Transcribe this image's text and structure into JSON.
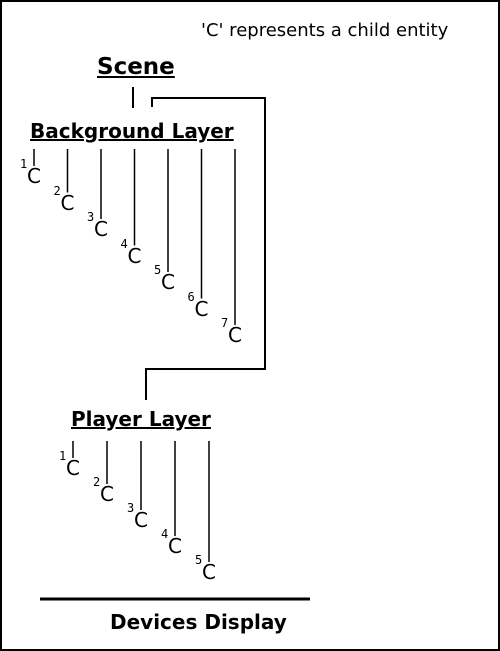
{
  "legend": "'C' represents a child entity",
  "scene": {
    "title": "Scene"
  },
  "background_layer": {
    "title": "Background Layer",
    "children": [
      {
        "index": "1",
        "label": "C"
      },
      {
        "index": "2",
        "label": "C"
      },
      {
        "index": "3",
        "label": "C"
      },
      {
        "index": "4",
        "label": "C"
      },
      {
        "index": "5",
        "label": "C"
      },
      {
        "index": "6",
        "label": "C"
      },
      {
        "index": "7",
        "label": "C"
      }
    ]
  },
  "player_layer": {
    "title": "Player Layer",
    "children": [
      {
        "index": "1",
        "label": "C"
      },
      {
        "index": "2",
        "label": "C"
      },
      {
        "index": "3",
        "label": "C"
      },
      {
        "index": "4",
        "label": "C"
      },
      {
        "index": "5",
        "label": "C"
      }
    ]
  },
  "devices_display": "Devices Display"
}
